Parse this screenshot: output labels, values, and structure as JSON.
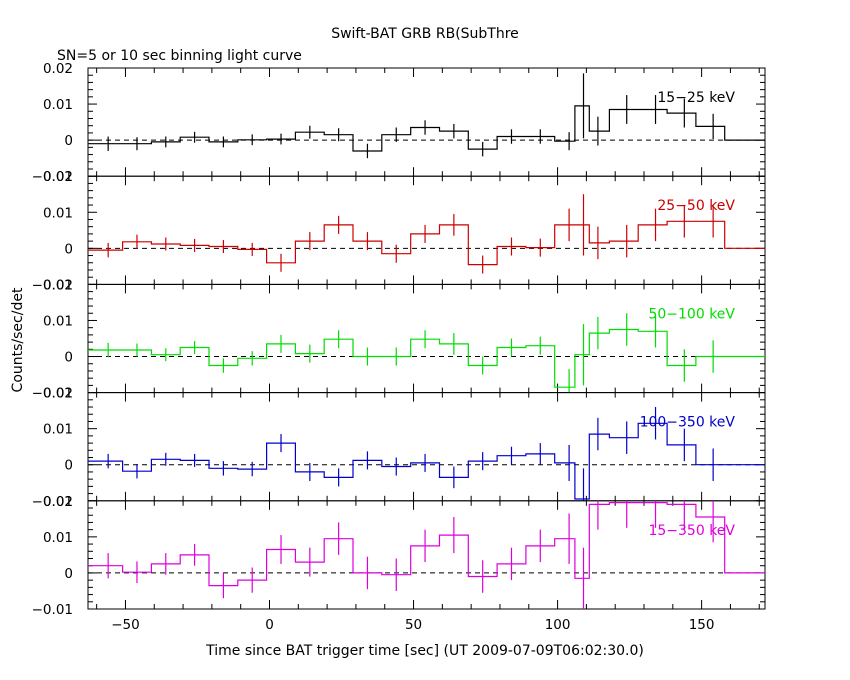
{
  "title": "Swift-BAT GRB RB(SubThre",
  "subtitle": "SN=5 or 10 sec binning light curve",
  "xlabel": "Time since BAT trigger time [sec] (UT 2009-07-09T06:02:30.0)",
  "ylabel": "Counts/sec/det",
  "chart_data": {
    "type": "line",
    "subtype": "step light curve with error bars",
    "xlim": [
      -63,
      172
    ],
    "ylim": [
      -0.01,
      0.02
    ],
    "x_ticks": [
      -50,
      0,
      50,
      100,
      150
    ],
    "x_tick_labels": [
      "−50",
      "0",
      "50",
      "100",
      "150"
    ],
    "y_ticks": [
      -0.01,
      0,
      0.01,
      0.02
    ],
    "y_tick_labels": [
      "−0.01",
      "0",
      "0.01",
      "0.02"
    ],
    "x": [
      -56,
      -46,
      -36,
      -26,
      -16,
      -6,
      4,
      14,
      24,
      34,
      44,
      54,
      64,
      74,
      84,
      94,
      104,
      109,
      114,
      124,
      134,
      144,
      154,
      164
    ],
    "bin_edges": [
      -63,
      -51,
      -41,
      -31,
      -21,
      -11,
      -1,
      9,
      19,
      29,
      39,
      49,
      59,
      69,
      79,
      89,
      99,
      106,
      111,
      118,
      128,
      138,
      148,
      158,
      172
    ],
    "series": [
      {
        "name": "15-25 keV",
        "label": "15−25 keV",
        "color": "#000000",
        "values": [
          -0.001,
          -0.001,
          -0.0005,
          0.0008,
          -0.0005,
          0.0001,
          0.0003,
          0.0022,
          0.0015,
          -0.003,
          0.0015,
          0.0035,
          0.0025,
          -0.0025,
          0.001,
          0.001,
          -0.0003,
          0.0095,
          0.0025,
          0.0085,
          0.0085,
          0.0075,
          0.0038,
          0.0
        ],
        "errors": [
          0.002,
          0.0018,
          0.0015,
          0.0015,
          0.0015,
          0.0015,
          0.0015,
          0.0018,
          0.0018,
          0.002,
          0.002,
          0.002,
          0.002,
          0.002,
          0.002,
          0.002,
          0.0025,
          0.009,
          0.004,
          0.004,
          0.004,
          0.004,
          0.0035,
          0.0
        ]
      },
      {
        "name": "25-50 keV",
        "label": "25−50 keV",
        "color": "#cc0000",
        "values": [
          -0.0005,
          0.0018,
          0.0012,
          0.0008,
          0.0005,
          -0.0003,
          -0.004,
          0.002,
          0.0065,
          0.002,
          -0.0015,
          0.004,
          0.0065,
          -0.0045,
          0.0005,
          0.0002,
          0.0065,
          0.0065,
          0.0015,
          0.002,
          0.0065,
          0.0075,
          0.0075,
          0.0
        ],
        "errors": [
          0.002,
          0.002,
          0.0018,
          0.0018,
          0.0018,
          0.0018,
          0.0025,
          0.0025,
          0.0025,
          0.0025,
          0.0025,
          0.0025,
          0.003,
          0.0025,
          0.0025,
          0.0025,
          0.0045,
          0.0085,
          0.0045,
          0.0045,
          0.0045,
          0.0045,
          0.0045,
          0.0
        ]
      },
      {
        "name": "50-100 keV",
        "label": "50−100 keV",
        "color": "#00dd00",
        "values": [
          0.0018,
          0.0018,
          0.0005,
          0.0025,
          -0.0025,
          -0.0005,
          0.0035,
          0.0008,
          0.0048,
          0.0,
          0.0,
          0.0048,
          0.0035,
          -0.0025,
          0.0025,
          0.003,
          -0.0085,
          0.0005,
          0.0065,
          0.0075,
          0.007,
          -0.0025,
          0.0,
          0.0
        ],
        "errors": [
          0.002,
          0.0018,
          0.0018,
          0.0018,
          0.002,
          0.002,
          0.0025,
          0.0025,
          0.0025,
          0.0025,
          0.0025,
          0.0025,
          0.003,
          0.0025,
          0.0025,
          0.0025,
          0.005,
          0.0085,
          0.0045,
          0.0045,
          0.0045,
          0.0045,
          0.0045,
          0.0
        ]
      },
      {
        "name": "100-350 keV",
        "label": "100−350 keV",
        "color": "#0000cc",
        "values": [
          0.001,
          -0.0018,
          0.0015,
          0.0012,
          -0.001,
          -0.0012,
          0.006,
          -0.002,
          -0.0035,
          0.0012,
          -0.0005,
          0.0005,
          -0.0035,
          0.001,
          0.0025,
          0.003,
          0.0005,
          -0.0095,
          0.0085,
          0.0075,
          0.0115,
          0.0055,
          0.0,
          0.0
        ],
        "errors": [
          0.002,
          0.002,
          0.0018,
          0.0018,
          0.002,
          0.002,
          0.0025,
          0.0025,
          0.0025,
          0.0025,
          0.0025,
          0.0025,
          0.003,
          0.0025,
          0.0025,
          0.003,
          0.005,
          0.0085,
          0.0045,
          0.0045,
          0.0045,
          0.0045,
          0.0045,
          0.0
        ]
      },
      {
        "name": "15-350 keV",
        "label": "15−350 keV",
        "color": "#dd00dd",
        "values": [
          0.002,
          0.0002,
          0.0025,
          0.005,
          -0.0035,
          -0.002,
          0.0065,
          0.003,
          0.0095,
          0.0,
          -0.0005,
          0.0075,
          0.0105,
          -0.001,
          0.0025,
          0.0075,
          0.0095,
          -0.0015,
          0.019,
          0.0195,
          0.0195,
          0.019,
          0.0155,
          0.0
        ],
        "errors": [
          0.0035,
          0.003,
          0.003,
          0.003,
          0.0035,
          0.0035,
          0.004,
          0.004,
          0.0045,
          0.0045,
          0.0045,
          0.0045,
          0.005,
          0.0045,
          0.0045,
          0.0045,
          0.007,
          0.0085,
          0.007,
          0.007,
          0.007,
          0.007,
          0.007,
          0.0
        ]
      }
    ]
  }
}
